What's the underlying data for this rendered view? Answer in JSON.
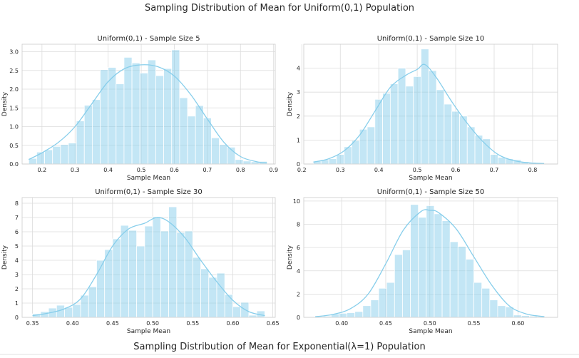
{
  "figure": {
    "suptitle": "Sampling Distribution of Mean for Uniform(0,1) Population",
    "bottom_title": "Sampling Distribution of Mean for Exponential(λ=1) Population"
  },
  "chart_data": [
    {
      "type": "bar",
      "title": "Uniform(0,1) - Sample Size 5",
      "xlabel": "Sample Mean",
      "ylabel": "Density",
      "xlim": [
        0.14,
        0.905
      ],
      "ylim": [
        0,
        3.2
      ],
      "xticks": [
        0.2,
        0.3,
        0.4,
        0.5,
        0.6,
        0.7,
        0.8,
        0.9
      ],
      "xtick_labels": [
        "0.2",
        "0.3",
        "0.4",
        "0.5",
        "0.6",
        "0.7",
        "0.8",
        "0.9"
      ],
      "yticks": [
        0,
        0.5,
        1.0,
        1.5,
        2.0,
        2.5,
        3.0
      ],
      "ytick_labels": [
        "0.0",
        "0.5",
        "1.0",
        "1.5",
        "2.0",
        "2.5",
        "3.0"
      ],
      "bin_edges": [
        0.16,
        0.184,
        0.208,
        0.232,
        0.256,
        0.28,
        0.304,
        0.328,
        0.352,
        0.376,
        0.4,
        0.424,
        0.448,
        0.472,
        0.496,
        0.52,
        0.544,
        0.568,
        0.592,
        0.616,
        0.64,
        0.664,
        0.688,
        0.712,
        0.736,
        0.76,
        0.784,
        0.808,
        0.832,
        0.856,
        0.88
      ],
      "values": [
        0.15,
        0.32,
        0.38,
        0.47,
        0.52,
        0.56,
        1.15,
        1.57,
        1.72,
        2.52,
        2.58,
        2.14,
        2.85,
        2.7,
        2.43,
        2.78,
        2.36,
        2.55,
        3.05,
        1.77,
        1.28,
        1.56,
        1.23,
        0.7,
        0.52,
        0.45,
        0.12,
        0.08,
        0.06,
        0.07
      ],
      "kde": {
        "x": [
          0.16,
          0.2,
          0.25,
          0.3,
          0.35,
          0.4,
          0.45,
          0.5,
          0.55,
          0.6,
          0.65,
          0.7,
          0.75,
          0.8,
          0.85,
          0.88
        ],
        "y": [
          0.12,
          0.3,
          0.58,
          1.0,
          1.6,
          2.2,
          2.55,
          2.65,
          2.6,
          2.35,
          1.85,
          1.2,
          0.58,
          0.2,
          0.06,
          0.03
        ]
      },
      "grid": true
    },
    {
      "type": "bar",
      "title": "Uniform(0,1) - Sample Size 10",
      "xlabel": "Sample Mean",
      "ylabel": "Density",
      "xlim": [
        0.205,
        0.865
      ],
      "ylim": [
        0,
        5.0
      ],
      "xticks": [
        0.2,
        0.3,
        0.4,
        0.5,
        0.6,
        0.7,
        0.8
      ],
      "xtick_labels": [
        "0.2",
        "0.3",
        "0.4",
        "0.5",
        "0.6",
        "0.7",
        "0.8"
      ],
      "yticks": [
        0,
        1,
        2,
        3,
        4
      ],
      "ytick_labels": [
        "0",
        "1",
        "2",
        "3",
        "4"
      ],
      "bin_edges": [
        0.23,
        0.25,
        0.27,
        0.29,
        0.31,
        0.33,
        0.35,
        0.37,
        0.39,
        0.41,
        0.43,
        0.45,
        0.47,
        0.49,
        0.51,
        0.53,
        0.55,
        0.57,
        0.59,
        0.61,
        0.63,
        0.65,
        0.67,
        0.69,
        0.71,
        0.73,
        0.75,
        0.77,
        0.79,
        0.81,
        0.83
      ],
      "values": [
        0.12,
        0.18,
        0.22,
        0.4,
        0.72,
        0.98,
        1.45,
        1.55,
        2.7,
        2.95,
        3.35,
        4.0,
        3.25,
        3.65,
        4.8,
        3.9,
        3.1,
        2.5,
        2.2,
        2.0,
        1.55,
        1.2,
        1.05,
        0.4,
        0.28,
        0.22,
        0.18,
        0.1,
        0.06,
        0.04
      ],
      "kde": {
        "x": [
          0.23,
          0.27,
          0.31,
          0.35,
          0.39,
          0.43,
          0.47,
          0.5,
          0.52,
          0.55,
          0.59,
          0.63,
          0.67,
          0.71,
          0.75,
          0.79,
          0.83
        ],
        "y": [
          0.08,
          0.22,
          0.55,
          1.2,
          2.2,
          3.2,
          3.7,
          3.95,
          4.15,
          3.6,
          2.6,
          1.7,
          0.95,
          0.4,
          0.15,
          0.05,
          0.02
        ]
      },
      "grid": true
    },
    {
      "type": "bar",
      "title": "Uniform(0,1) - Sample Size 30",
      "xlabel": "Sample Mean",
      "ylabel": "Density",
      "xlim": [
        0.337,
        0.653
      ],
      "ylim": [
        0,
        8.4
      ],
      "xticks": [
        0.35,
        0.4,
        0.45,
        0.5,
        0.55,
        0.6,
        0.65
      ],
      "xtick_labels": [
        "0.35",
        "0.40",
        "0.45",
        "0.50",
        "0.55",
        "0.60",
        "0.65"
      ],
      "yticks": [
        0,
        1,
        2,
        3,
        4,
        5,
        6,
        7,
        8
      ],
      "ytick_labels": [
        "0",
        "1",
        "2",
        "3",
        "4",
        "5",
        "6",
        "7",
        "8"
      ],
      "bin_edges": [
        0.35,
        0.36,
        0.37,
        0.38,
        0.39,
        0.4,
        0.41,
        0.42,
        0.43,
        0.44,
        0.45,
        0.46,
        0.47,
        0.48,
        0.49,
        0.5,
        0.51,
        0.52,
        0.53,
        0.54,
        0.55,
        0.56,
        0.57,
        0.58,
        0.59,
        0.6,
        0.61,
        0.62,
        0.63,
        0.64
      ],
      "values": [
        0.25,
        0.4,
        0.65,
        0.85,
        0.7,
        0.9,
        1.55,
        2.15,
        4.0,
        4.75,
        5.5,
        6.45,
        6.1,
        5.0,
        6.4,
        7.05,
        6.05,
        7.75,
        5.95,
        6.05,
        4.2,
        3.4,
        2.8,
        3.1,
        1.6,
        0.75,
        1.05,
        0.15,
        0.45,
        0.15
      ],
      "kde": {
        "x": [
          0.35,
          0.37,
          0.39,
          0.41,
          0.43,
          0.45,
          0.47,
          0.49,
          0.505,
          0.52,
          0.54,
          0.56,
          0.58,
          0.6,
          0.62,
          0.64
        ],
        "y": [
          0.12,
          0.3,
          0.6,
          1.3,
          3.0,
          5.0,
          6.2,
          6.6,
          7.0,
          6.7,
          5.6,
          4.0,
          2.5,
          1.2,
          0.4,
          0.12
        ]
      },
      "grid": true
    },
    {
      "type": "bar",
      "title": "Uniform(0,1) - Sample Size 50",
      "xlabel": "Sample Mean",
      "ylabel": "Density",
      "xlim": [
        0.357,
        0.645
      ],
      "ylim": [
        0,
        10.3
      ],
      "xticks": [
        0.4,
        0.45,
        0.5,
        0.55,
        0.6
      ],
      "xtick_labels": [
        "0.40",
        "0.45",
        "0.50",
        "0.55",
        "0.60"
      ],
      "yticks": [
        0,
        2,
        4,
        6,
        8,
        10
      ],
      "ytick_labels": [
        "0",
        "2",
        "4",
        "6",
        "8",
        "10"
      ],
      "bin_edges": [
        0.37,
        0.379,
        0.388,
        0.397,
        0.406,
        0.415,
        0.424,
        0.433,
        0.442,
        0.451,
        0.46,
        0.469,
        0.478,
        0.487,
        0.496,
        0.505,
        0.514,
        0.523,
        0.532,
        0.541,
        0.55,
        0.559,
        0.568,
        0.577,
        0.586,
        0.595,
        0.604,
        0.613,
        0.622,
        0.631
      ],
      "values": [
        0.05,
        0.1,
        0.3,
        0.35,
        0.4,
        0.5,
        1.0,
        1.5,
        2.5,
        3.0,
        5.4,
        5.8,
        9.7,
        8.6,
        9.6,
        8.9,
        8.3,
        6.5,
        6.1,
        5.0,
        3.0,
        2.5,
        1.5,
        1.0,
        0.9,
        0.2,
        0.15,
        0.1,
        0.05,
        0.05
      ],
      "kde": {
        "x": [
          0.37,
          0.39,
          0.41,
          0.43,
          0.45,
          0.47,
          0.49,
          0.5,
          0.51,
          0.53,
          0.55,
          0.57,
          0.59,
          0.61,
          0.63
        ],
        "y": [
          0.05,
          0.25,
          0.75,
          2.0,
          4.6,
          7.5,
          9.1,
          9.2,
          9.0,
          7.6,
          5.2,
          2.8,
          1.0,
          0.28,
          0.06
        ]
      },
      "grid": true
    }
  ]
}
